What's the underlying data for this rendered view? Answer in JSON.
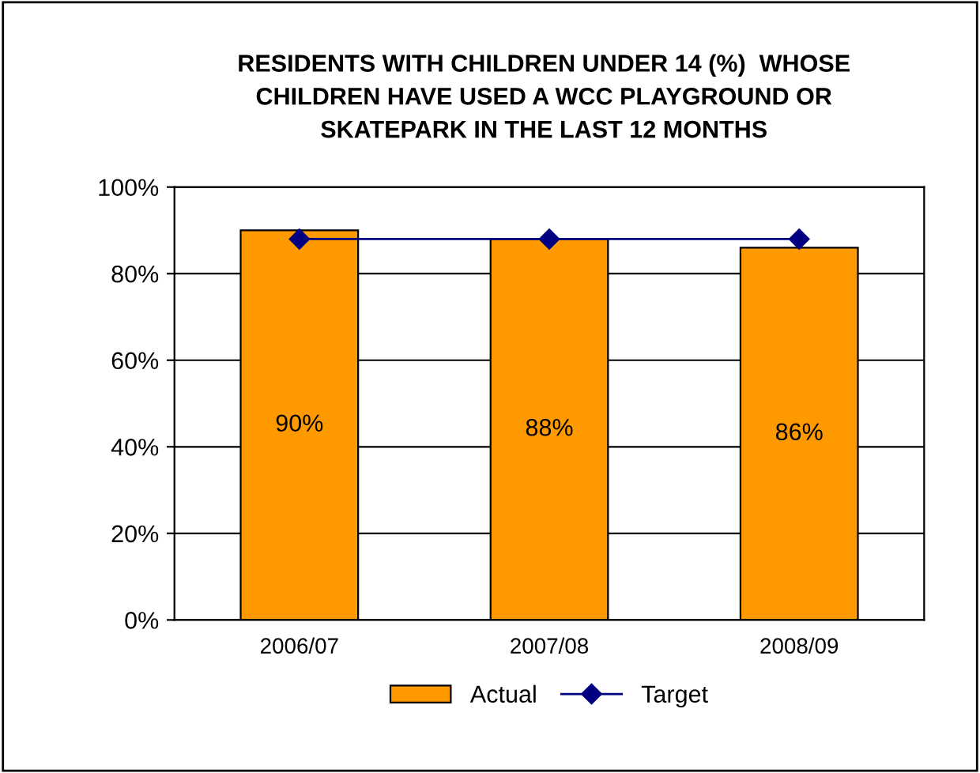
{
  "chart_data": {
    "type": "bar",
    "title": "RESIDENTS WITH CHILDREN UNDER 14 (%)  WHOSE\nCHILDREN HAVE USED A WCC PLAYGROUND OR\nSKATEPARK IN THE LAST 12 MONTHS",
    "categories": [
      "2006/07",
      "2007/08",
      "2008/09"
    ],
    "series": [
      {
        "name": "Actual",
        "color": "#ff9900",
        "values": [
          90,
          88,
          86
        ],
        "value_labels": [
          "90%",
          "88%",
          "86%"
        ]
      },
      {
        "name": "Target",
        "type": "line",
        "color": "#000080",
        "values": [
          88,
          88,
          88
        ],
        "marker": "diamond"
      }
    ],
    "ylim": [
      0,
      100
    ],
    "yticks": [
      {
        "value": 0,
        "label": "0%"
      },
      {
        "value": 20,
        "label": "20%"
      },
      {
        "value": 40,
        "label": "40%"
      },
      {
        "value": 60,
        "label": "60%"
      },
      {
        "value": 80,
        "label": "80%"
      },
      {
        "value": 100,
        "label": "100%"
      }
    ],
    "grid": "y",
    "legend": "bottom"
  }
}
